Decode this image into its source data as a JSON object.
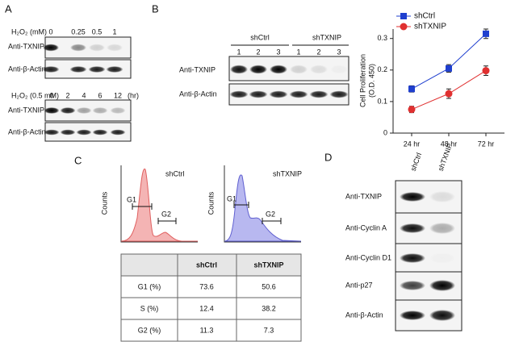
{
  "panel_a": {
    "label": "A",
    "treatment_1": "H₂O₂ (mM)",
    "doses": [
      "0",
      "0.25",
      "0.5",
      "1"
    ],
    "blots_1": [
      "Anti-TXNIP",
      "Anti-β-Actin"
    ],
    "treatment_2": "H₂O₂ (0.5 mM)",
    "times": [
      "0",
      "2",
      "4",
      "6",
      "12"
    ],
    "time_unit": "(hr)",
    "blots_2": [
      "Anti-TXNIP",
      "Anti-β-Actin"
    ]
  },
  "panel_b": {
    "label": "B",
    "groups": [
      "shCtrl",
      "shTXNIP"
    ],
    "lanes": [
      "1",
      "2",
      "3",
      "1",
      "2",
      "3"
    ],
    "blots": [
      "Anti-TXNIP",
      "Anti-β-Actin"
    ]
  },
  "chart_data": {
    "type": "line",
    "y_label": [
      "Cell Proliferation",
      "(O.D. 450)"
    ],
    "categories": [
      "24 hr",
      "48 hr",
      "72 hr"
    ],
    "series": [
      {
        "name": "shCtrl",
        "color": "#1f3fcf",
        "marker": "square",
        "values": [
          0.14,
          0.205,
          0.315
        ],
        "errors": [
          0.01,
          0.012,
          0.015
        ]
      },
      {
        "name": "shTXNIP",
        "color": "#e03030",
        "marker": "circle",
        "values": [
          0.075,
          0.125,
          0.198
        ],
        "errors": [
          0.01,
          0.015,
          0.015
        ]
      }
    ],
    "ylim": [
      0,
      0.33
    ],
    "yticks": [
      0,
      0.1,
      0.2,
      0.3
    ],
    "legend": "upper left"
  },
  "panel_c": {
    "label": "C",
    "histograms": [
      {
        "title": "shCtrl",
        "y_label": "Counts",
        "gates": [
          "G1",
          "G2"
        ]
      },
      {
        "title": "shTXNIP",
        "y_label": "Counts",
        "gates": [
          "G1",
          "G2"
        ]
      }
    ],
    "table": {
      "header": [
        "shCtrl",
        "shTXNIP"
      ],
      "rows": [
        [
          "G1 (%)",
          "73.6",
          "50.6"
        ],
        [
          "S (%)",
          "12.4",
          "38.2"
        ],
        [
          "G2 (%)",
          "11.3",
          "7.3"
        ]
      ]
    }
  },
  "panel_d": {
    "label": "D",
    "columns": [
      "shCtrl",
      "shTXNIP"
    ],
    "blots": [
      "Anti-TXNIP",
      "Anti-Cyclin A",
      "Anti-Cyclin D1",
      "Anti-p27",
      "Anti-β-Actin"
    ]
  }
}
